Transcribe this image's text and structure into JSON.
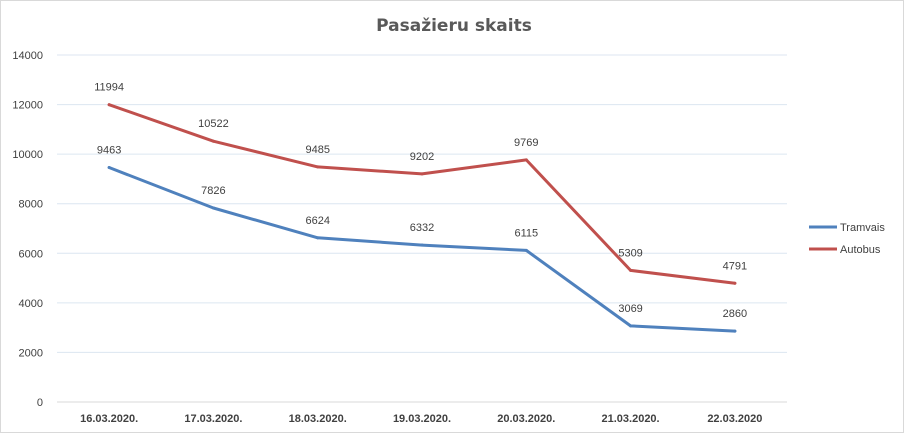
{
  "chart_data": {
    "type": "line",
    "title": "Pasažieru skaits",
    "xlabel": "",
    "ylabel": "",
    "categories": [
      "16.03.2020.",
      "17.03.2020.",
      "18.03.2020.",
      "19.03.2020.",
      "20.03.2020.",
      "21.03.2020.",
      "22.03.2020"
    ],
    "ylim": [
      0,
      14000
    ],
    "yticks": [
      0,
      2000,
      4000,
      6000,
      8000,
      10000,
      12000,
      14000
    ],
    "grid": "horizontal",
    "legend_position": "right",
    "series": [
      {
        "name": "Tramvais",
        "color": "#4f81bd",
        "values": [
          9463,
          7826,
          6624,
          6332,
          6115,
          3069,
          2860
        ]
      },
      {
        "name": "Autobus",
        "color": "#c0504d",
        "values": [
          11994,
          10522,
          9485,
          9202,
          9769,
          5309,
          4791
        ]
      }
    ]
  }
}
